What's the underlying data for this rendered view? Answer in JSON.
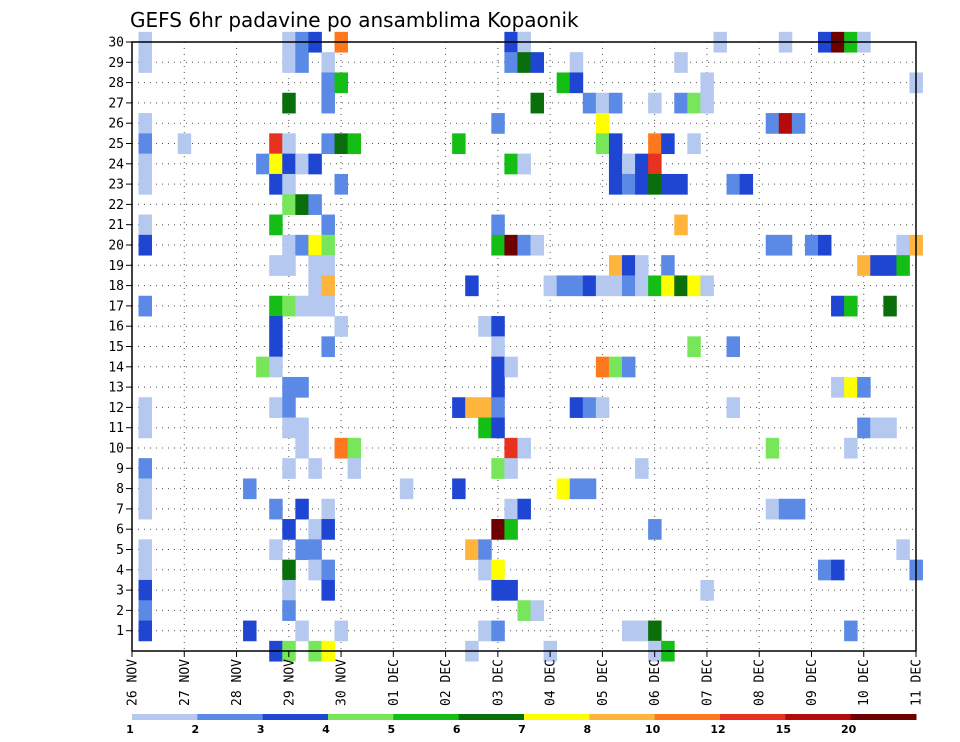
{
  "chart_data": {
    "type": "heatmap",
    "title": "GEFS 6hr padavine po ansamblima Kopaonik",
    "xlabel": "",
    "ylabel": "",
    "x_tick_labels": [
      "26 NOV",
      "27 NOV",
      "28 NOV",
      "29 NOV",
      "30 NOV",
      "01 DEC",
      "02 DEC",
      "03 DEC",
      "04 DEC",
      "05 DEC",
      "06 DEC",
      "07 DEC",
      "08 DEC",
      "09 DEC",
      "10 DEC",
      "11 DEC"
    ],
    "x_unit": "6-hour steps from 26 NOV 00Z",
    "xlim": [
      0,
      60
    ],
    "y_tick_labels": [
      "1",
      "2",
      "3",
      "4",
      "5",
      "6",
      "7",
      "8",
      "9",
      "10",
      "11",
      "12",
      "13",
      "14",
      "15",
      "16",
      "17",
      "18",
      "19",
      "20",
      "21",
      "22",
      "23",
      "24",
      "25",
      "26",
      "27",
      "28",
      "29",
      "30"
    ],
    "ylim": [
      0,
      30
    ],
    "grid": true,
    "legend": {
      "placement": "bottom",
      "labels": [
        "1",
        "2",
        "3",
        "4",
        "5",
        "6",
        "7",
        "8",
        "10",
        "12",
        "15",
        "20"
      ],
      "colors": [
        "#b4c8f0",
        "#5a8ae6",
        "#1e46d2",
        "#78e65a",
        "#14be14",
        "#0a6e0a",
        "#ffff00",
        "#ffb43c",
        "#ff781e",
        "#e6321e",
        "#b40a0a",
        "#6e0000"
      ]
    },
    "colors": [
      "#b4c8f0",
      "#5a8ae6",
      "#1e46d2",
      "#78e65a",
      "#14be14",
      "#0a6e0a",
      "#ffff00",
      "#ffb43c",
      "#ff781e",
      "#e6321e",
      "#b40a0a",
      "#6e0000"
    ],
    "cells": [
      [
        1,
        30,
        0
      ],
      [
        12,
        30,
        0
      ],
      [
        13,
        30,
        1
      ],
      [
        14,
        30,
        2
      ],
      [
        16,
        30,
        8
      ],
      [
        29,
        30,
        2
      ],
      [
        30,
        30,
        0
      ],
      [
        45,
        30,
        0
      ],
      [
        50,
        30,
        0
      ],
      [
        53,
        30,
        2
      ],
      [
        54,
        30,
        11
      ],
      [
        55,
        30,
        4
      ],
      [
        56,
        30,
        0
      ],
      [
        1,
        29,
        0
      ],
      [
        12,
        29,
        0
      ],
      [
        13,
        29,
        1
      ],
      [
        15,
        29,
        0
      ],
      [
        29,
        29,
        1
      ],
      [
        30,
        29,
        5
      ],
      [
        31,
        29,
        2
      ],
      [
        34,
        29,
        0
      ],
      [
        42,
        29,
        0
      ],
      [
        15,
        28,
        1
      ],
      [
        16,
        28,
        4
      ],
      [
        33,
        28,
        4
      ],
      [
        34,
        28,
        2
      ],
      [
        44,
        28,
        0
      ],
      [
        60,
        28,
        0
      ],
      [
        12,
        27,
        5
      ],
      [
        15,
        27,
        1
      ],
      [
        31,
        27,
        5
      ],
      [
        35,
        27,
        1
      ],
      [
        36,
        27,
        0
      ],
      [
        37,
        27,
        1
      ],
      [
        40,
        27,
        0
      ],
      [
        42,
        27,
        1
      ],
      [
        43,
        27,
        3
      ],
      [
        44,
        27,
        0
      ],
      [
        1,
        26,
        0
      ],
      [
        28,
        26,
        1
      ],
      [
        36,
        26,
        6
      ],
      [
        49,
        26,
        1
      ],
      [
        50,
        26,
        10
      ],
      [
        51,
        26,
        1
      ],
      [
        1,
        25,
        1
      ],
      [
        4,
        25,
        0
      ],
      [
        11,
        25,
        9
      ],
      [
        12,
        25,
        0
      ],
      [
        15,
        25,
        1
      ],
      [
        16,
        25,
        5
      ],
      [
        17,
        25,
        4
      ],
      [
        25,
        25,
        4
      ],
      [
        36,
        25,
        3
      ],
      [
        37,
        25,
        2
      ],
      [
        40,
        25,
        8
      ],
      [
        41,
        25,
        2
      ],
      [
        43,
        25,
        0
      ],
      [
        1,
        24,
        0
      ],
      [
        10,
        24,
        1
      ],
      [
        11,
        24,
        6
      ],
      [
        12,
        24,
        2
      ],
      [
        13,
        24,
        0
      ],
      [
        14,
        24,
        2
      ],
      [
        29,
        24,
        4
      ],
      [
        30,
        24,
        0
      ],
      [
        37,
        24,
        2
      ],
      [
        38,
        24,
        0
      ],
      [
        39,
        24,
        2
      ],
      [
        40,
        24,
        9
      ],
      [
        1,
        23,
        0
      ],
      [
        11,
        23,
        2
      ],
      [
        12,
        23,
        0
      ],
      [
        16,
        23,
        1
      ],
      [
        37,
        23,
        2
      ],
      [
        38,
        23,
        1
      ],
      [
        39,
        23,
        2
      ],
      [
        40,
        23,
        5
      ],
      [
        41,
        23,
        2
      ],
      [
        42,
        23,
        2
      ],
      [
        46,
        23,
        1
      ],
      [
        47,
        23,
        2
      ],
      [
        12,
        22,
        3
      ],
      [
        13,
        22,
        5
      ],
      [
        14,
        22,
        1
      ],
      [
        1,
        21,
        0
      ],
      [
        11,
        21,
        4
      ],
      [
        15,
        21,
        1
      ],
      [
        28,
        21,
        1
      ],
      [
        42,
        21,
        7
      ],
      [
        1,
        20,
        2
      ],
      [
        12,
        20,
        0
      ],
      [
        13,
        20,
        1
      ],
      [
        14,
        20,
        6
      ],
      [
        15,
        20,
        3
      ],
      [
        28,
        20,
        4
      ],
      [
        29,
        20,
        11
      ],
      [
        30,
        20,
        1
      ],
      [
        31,
        20,
        0
      ],
      [
        49,
        20,
        1
      ],
      [
        50,
        20,
        1
      ],
      [
        52,
        20,
        1
      ],
      [
        53,
        20,
        2
      ],
      [
        59,
        20,
        0
      ],
      [
        60,
        20,
        7
      ],
      [
        11,
        19,
        0
      ],
      [
        12,
        19,
        0
      ],
      [
        14,
        19,
        0
      ],
      [
        15,
        19,
        0
      ],
      [
        37,
        19,
        7
      ],
      [
        38,
        19,
        2
      ],
      [
        39,
        19,
        0
      ],
      [
        41,
        19,
        1
      ],
      [
        56,
        19,
        7
      ],
      [
        57,
        19,
        2
      ],
      [
        58,
        19,
        2
      ],
      [
        59,
        19,
        4
      ],
      [
        14,
        18,
        0
      ],
      [
        15,
        18,
        7
      ],
      [
        26,
        18,
        2
      ],
      [
        32,
        18,
        0
      ],
      [
        33,
        18,
        1
      ],
      [
        34,
        18,
        1
      ],
      [
        35,
        18,
        2
      ],
      [
        36,
        18,
        0
      ],
      [
        37,
        18,
        0
      ],
      [
        38,
        18,
        1
      ],
      [
        39,
        18,
        0
      ],
      [
        40,
        18,
        4
      ],
      [
        41,
        18,
        6
      ],
      [
        42,
        18,
        5
      ],
      [
        43,
        18,
        6
      ],
      [
        44,
        18,
        0
      ],
      [
        1,
        17,
        1
      ],
      [
        11,
        17,
        4
      ],
      [
        12,
        17,
        3
      ],
      [
        13,
        17,
        0
      ],
      [
        14,
        17,
        0
      ],
      [
        15,
        17,
        0
      ],
      [
        54,
        17,
        2
      ],
      [
        55,
        17,
        4
      ],
      [
        58,
        17,
        5
      ],
      [
        11,
        16,
        2
      ],
      [
        16,
        16,
        0
      ],
      [
        27,
        16,
        0
      ],
      [
        28,
        16,
        2
      ],
      [
        11,
        15,
        2
      ],
      [
        15,
        15,
        1
      ],
      [
        28,
        15,
        0
      ],
      [
        43,
        15,
        3
      ],
      [
        46,
        15,
        1
      ],
      [
        10,
        14,
        3
      ],
      [
        11,
        14,
        0
      ],
      [
        28,
        14,
        2
      ],
      [
        29,
        14,
        0
      ],
      [
        36,
        14,
        8
      ],
      [
        37,
        14,
        3
      ],
      [
        38,
        14,
        1
      ],
      [
        12,
        13,
        1
      ],
      [
        13,
        13,
        1
      ],
      [
        28,
        13,
        2
      ],
      [
        54,
        13,
        0
      ],
      [
        55,
        13,
        6
      ],
      [
        56,
        13,
        1
      ],
      [
        1,
        12,
        0
      ],
      [
        11,
        12,
        0
      ],
      [
        12,
        12,
        1
      ],
      [
        25,
        12,
        2
      ],
      [
        26,
        12,
        7
      ],
      [
        27,
        12,
        7
      ],
      [
        28,
        12,
        1
      ],
      [
        34,
        12,
        2
      ],
      [
        35,
        12,
        1
      ],
      [
        36,
        12,
        0
      ],
      [
        46,
        12,
        0
      ],
      [
        1,
        11,
        0
      ],
      [
        12,
        11,
        0
      ],
      [
        13,
        11,
        0
      ],
      [
        27,
        11,
        4
      ],
      [
        28,
        11,
        2
      ],
      [
        56,
        11,
        1
      ],
      [
        57,
        11,
        0
      ],
      [
        58,
        11,
        0
      ],
      [
        13,
        10,
        0
      ],
      [
        16,
        10,
        8
      ],
      [
        17,
        10,
        3
      ],
      [
        29,
        10,
        9
      ],
      [
        30,
        10,
        0
      ],
      [
        49,
        10,
        3
      ],
      [
        55,
        10,
        0
      ],
      [
        1,
        9,
        1
      ],
      [
        12,
        9,
        0
      ],
      [
        14,
        9,
        0
      ],
      [
        17,
        9,
        0
      ],
      [
        28,
        9,
        3
      ],
      [
        29,
        9,
        0
      ],
      [
        39,
        9,
        0
      ],
      [
        1,
        8,
        0
      ],
      [
        9,
        8,
        1
      ],
      [
        21,
        8,
        0
      ],
      [
        25,
        8,
        2
      ],
      [
        33,
        8,
        6
      ],
      [
        34,
        8,
        1
      ],
      [
        35,
        8,
        1
      ],
      [
        1,
        7,
        0
      ],
      [
        11,
        7,
        1
      ],
      [
        13,
        7,
        2
      ],
      [
        15,
        7,
        0
      ],
      [
        29,
        7,
        0
      ],
      [
        30,
        7,
        2
      ],
      [
        49,
        7,
        0
      ],
      [
        50,
        7,
        1
      ],
      [
        51,
        7,
        1
      ],
      [
        12,
        6,
        2
      ],
      [
        14,
        6,
        0
      ],
      [
        15,
        6,
        2
      ],
      [
        28,
        6,
        11
      ],
      [
        29,
        6,
        4
      ],
      [
        40,
        6,
        1
      ],
      [
        1,
        5,
        0
      ],
      [
        11,
        5,
        0
      ],
      [
        13,
        5,
        1
      ],
      [
        14,
        5,
        1
      ],
      [
        26,
        5,
        7
      ],
      [
        27,
        5,
        1
      ],
      [
        59,
        5,
        0
      ],
      [
        1,
        4,
        0
      ],
      [
        12,
        4,
        5
      ],
      [
        14,
        4,
        0
      ],
      [
        15,
        4,
        1
      ],
      [
        27,
        4,
        0
      ],
      [
        28,
        4,
        6
      ],
      [
        53,
        4,
        1
      ],
      [
        54,
        4,
        2
      ],
      [
        60,
        4,
        1
      ],
      [
        1,
        3,
        2
      ],
      [
        12,
        3,
        0
      ],
      [
        15,
        3,
        2
      ],
      [
        28,
        3,
        2
      ],
      [
        29,
        3,
        2
      ],
      [
        44,
        3,
        0
      ],
      [
        1,
        2,
        1
      ],
      [
        12,
        2,
        1
      ],
      [
        30,
        2,
        3
      ],
      [
        31,
        2,
        0
      ],
      [
        1,
        1,
        2
      ],
      [
        9,
        1,
        2
      ],
      [
        13,
        1,
        0
      ],
      [
        16,
        1,
        0
      ],
      [
        27,
        1,
        0
      ],
      [
        28,
        1,
        1
      ],
      [
        38,
        1,
        0
      ],
      [
        39,
        1,
        0
      ],
      [
        40,
        1,
        5
      ],
      [
        55,
        1,
        1
      ],
      [
        11,
        0,
        2
      ],
      [
        12,
        0,
        3
      ],
      [
        14,
        0,
        3
      ],
      [
        15,
        0,
        6
      ],
      [
        26,
        0,
        0
      ],
      [
        32,
        0,
        0
      ],
      [
        40,
        0,
        0
      ],
      [
        41,
        0,
        4
      ]
    ]
  }
}
